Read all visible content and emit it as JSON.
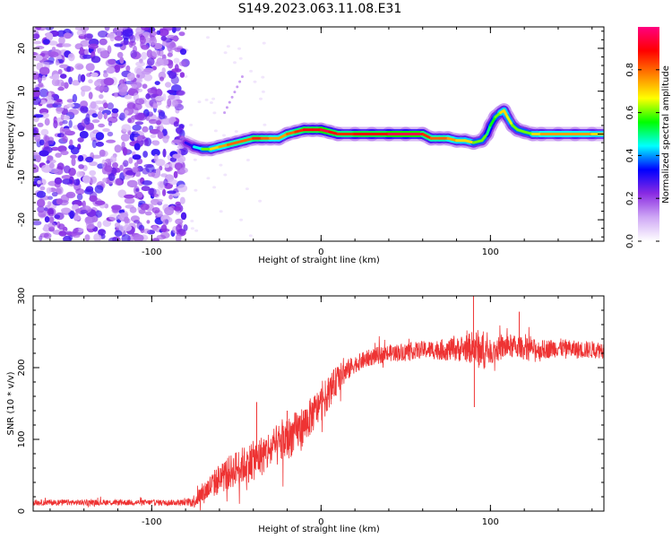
{
  "title": "S149.2023.063.11.08.E31",
  "chart_data": [
    {
      "type": "heatmap",
      "xlabel": "Height of straight line (km)",
      "ylabel": "Frequency (Hz)",
      "xlim": [
        -170,
        167
      ],
      "ylim": [
        -25,
        25
      ],
      "xticks": [
        -100,
        0,
        100
      ],
      "yticks": [
        -20,
        -10,
        0,
        10,
        20
      ],
      "colorbar": {
        "label": "Normalized spectral amplitude",
        "range": [
          0,
          1
        ],
        "ticks": [
          "0.0",
          "0.2",
          "0.4",
          "0.6",
          "0.8"
        ],
        "colormap": [
          "#ffffff",
          "#cfa8f5",
          "#8a2be2",
          "#0000ff",
          "#00ffff",
          "#00ff00",
          "#ffff00",
          "#ff8000",
          "#ff0000",
          "#ff0080"
        ]
      },
      "noise_region_x": [
        -170,
        -80
      ],
      "ridge": {
        "x": [
          -80,
          -75,
          -70,
          -65,
          -60,
          -55,
          -50,
          -45,
          -40,
          -35,
          -30,
          -25,
          -20,
          -15,
          -10,
          -5,
          0,
          5,
          10,
          20,
          30,
          40,
          50,
          60,
          65,
          70,
          75,
          80,
          85,
          90,
          95,
          98,
          100,
          103,
          106,
          108,
          110,
          113,
          116,
          120,
          125,
          130,
          140,
          150,
          160,
          167
        ],
        "y": [
          -2,
          -3,
          -3.5,
          -3.5,
          -3,
          -2.5,
          -2,
          -1.5,
          -1,
          -1,
          -1,
          -1,
          0,
          0.5,
          1,
          1,
          1,
          0.5,
          0,
          0,
          0,
          0,
          0,
          0,
          -1,
          -1,
          -1,
          -1.5,
          -1.5,
          -2,
          -1.5,
          0,
          2,
          4,
          5,
          5.5,
          4,
          2,
          1,
          0.5,
          0,
          0,
          0,
          0,
          0,
          0
        ],
        "amp": [
          0.3,
          0.45,
          0.6,
          0.7,
          0.75,
          0.8,
          0.8,
          0.8,
          0.85,
          0.8,
          0.75,
          0.75,
          0.8,
          0.85,
          0.9,
          0.9,
          0.95,
          0.9,
          0.85,
          0.9,
          0.9,
          0.95,
          0.95,
          0.85,
          0.8,
          0.8,
          0.75,
          0.7,
          0.7,
          0.6,
          0.6,
          0.5,
          0.55,
          0.6,
          0.7,
          0.7,
          0.65,
          0.6,
          0.6,
          0.6,
          0.7,
          0.75,
          0.75,
          0.75,
          0.7,
          0.65
        ]
      }
    },
    {
      "type": "line",
      "xlabel": "Height of straight line (km)",
      "ylabel": "SNR (10 * v/v)",
      "xlim": [
        -170,
        167
      ],
      "ylim": [
        0,
        300
      ],
      "xticks": [
        -100,
        0,
        100
      ],
      "yticks": [
        0,
        100,
        200,
        300
      ],
      "color": "#ee3333",
      "series": [
        {
          "trend_x": [
            -170,
            -80,
            -75,
            -70,
            -60,
            -50,
            -40,
            -30,
            -20,
            -10,
            0,
            10,
            20,
            30,
            40,
            60,
            80,
            90,
            100,
            110,
            120,
            130,
            140,
            150,
            160,
            167
          ],
          "trend_y": [
            12,
            12,
            14,
            25,
            45,
            60,
            70,
            85,
            100,
            120,
            150,
            185,
            205,
            215,
            220,
            225,
            225,
            228,
            222,
            230,
            228,
            225,
            228,
            225,
            225,
            225
          ],
          "noise_x": [
            -170,
            -80,
            -75,
            -60,
            -40,
            -20,
            0,
            10,
            20,
            60,
            85,
            95,
            100,
            110,
            120,
            167
          ],
          "noise_amp": [
            4,
            4,
            10,
            22,
            28,
            30,
            25,
            20,
            12,
            12,
            18,
            30,
            16,
            18,
            14,
            12
          ]
        }
      ],
      "spikes": [
        {
          "x": -38,
          "y": 152
        },
        {
          "x": -20,
          "y": 140
        },
        {
          "x": -5,
          "y": 145
        },
        {
          "x": 90,
          "y": 300
        },
        {
          "x": 90.5,
          "y": 145
        },
        {
          "x": 117,
          "y": 278
        }
      ]
    }
  ]
}
